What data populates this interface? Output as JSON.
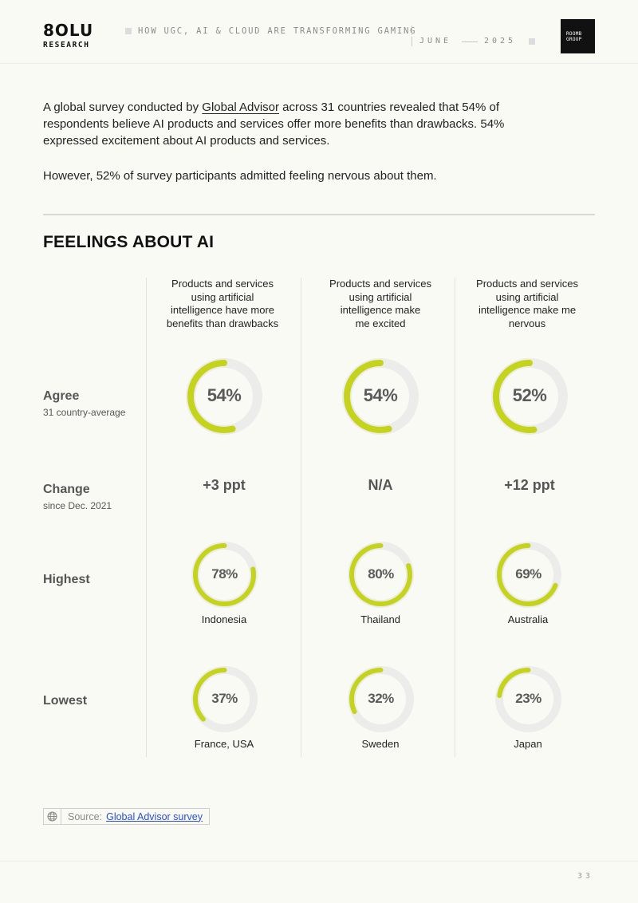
{
  "header": {
    "logo": "8OLU",
    "logo_sub": "RESEARCH",
    "title": "HOW UGC, AI & CLOUD ARE TRANSFORMING GAMING",
    "month": "JUNE",
    "year": "2025",
    "partner_line1": "ROOMB",
    "partner_line2": "GROUP"
  },
  "intro": {
    "p1_before": "A global survey conducted by ",
    "p1_link": "Global Advisor",
    "p1_after": " across 31 countries revealed that 54% of respondents believe AI products and services offer more benefits than drawbacks. 54% expressed excitement about AI products and services.",
    "p2": "However, 52% of survey participants admitted feeling nervous about them."
  },
  "section_title": "FEELINGS ABOUT AI",
  "rows": {
    "agree": "Agree",
    "agree_sub": "31 country-average",
    "change": "Change",
    "change_sub": "since Dec. 2021",
    "highest": "Highest",
    "lowest": "Lowest"
  },
  "columns": [
    {
      "header": [
        "Products and services",
        "using artificial",
        "intelligence have more",
        "benefits than drawbacks"
      ],
      "agree": 54,
      "agree_label": "54%",
      "change": "+3 ppt",
      "highest": 78,
      "highest_label": "78%",
      "highest_country": "Indonesia",
      "lowest": 37,
      "lowest_label": "37%",
      "lowest_country": "France, USA"
    },
    {
      "header": [
        "Products and services",
        "using artificial",
        "intelligence make",
        "me excited"
      ],
      "agree": 54,
      "agree_label": "54%",
      "change": "N/A",
      "highest": 80,
      "highest_label": "80%",
      "highest_country": "Thailand",
      "lowest": 32,
      "lowest_label": "32%",
      "lowest_country": "Sweden"
    },
    {
      "header": [
        "Products and services",
        "using artificial",
        "intelligence make me",
        "nervous"
      ],
      "agree": 52,
      "agree_label": "52%",
      "change": "+12 ppt",
      "highest": 69,
      "highest_label": "69%",
      "highest_country": "Australia",
      "lowest": 23,
      "lowest_label": "23%",
      "lowest_country": "Japan"
    }
  ],
  "source": {
    "label": "Source:",
    "link": "Global Advisor survey"
  },
  "page_number": "33",
  "colors": {
    "accent": "#c5d41a",
    "track": "#ececea",
    "background": "#fafaf5"
  }
}
